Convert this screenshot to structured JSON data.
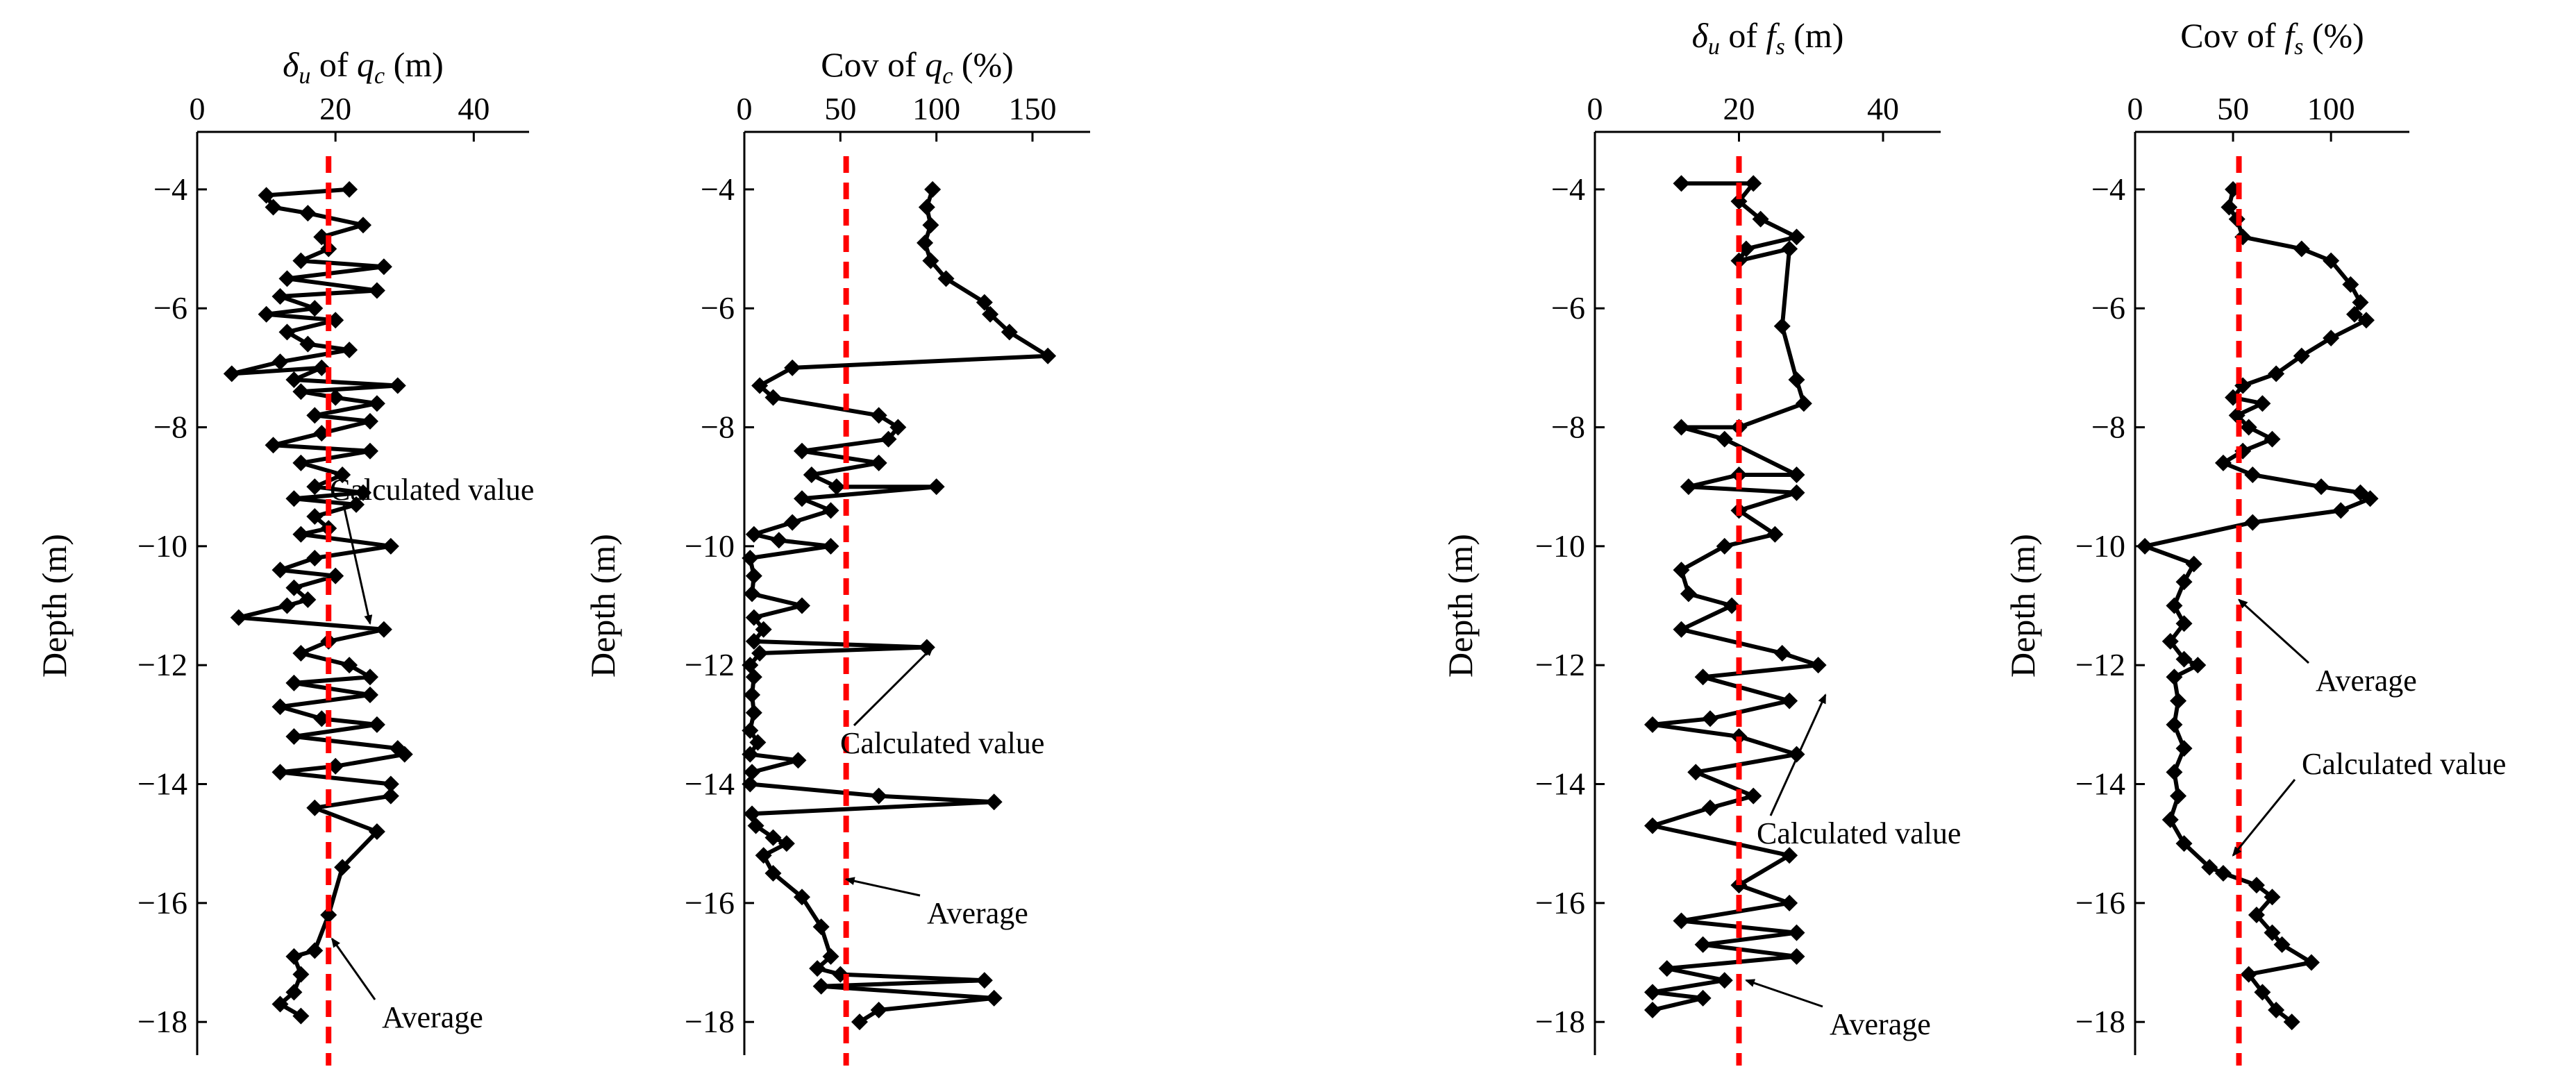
{
  "colors": {
    "data_line": "#000000",
    "average_line": "#ff0000"
  },
  "shared": {
    "ylabel": "Depth (m)",
    "yticks": [
      -4,
      -6,
      -8,
      -10,
      -12,
      -14,
      -16,
      -18
    ],
    "ylim": [
      -18.5,
      -3.5
    ]
  },
  "chart_data": [
    {
      "id": "p1",
      "type": "line",
      "title": "δu of qc (m)",
      "title_parts": [
        "δ",
        "u",
        " of ",
        "q",
        "c",
        " (m)"
      ],
      "xlabel": "δu of qc (m)",
      "ylabel": "Depth (m)",
      "xlim": [
        0,
        48
      ],
      "xticks": [
        0,
        20,
        40
      ],
      "average": 19,
      "series": [
        {
          "name": "Calculated value",
          "marker": "diamond",
          "points": [
            [
              22,
              -4.0
            ],
            [
              10,
              -4.1
            ],
            [
              11,
              -4.3
            ],
            [
              16,
              -4.4
            ],
            [
              24,
              -4.6
            ],
            [
              18,
              -4.8
            ],
            [
              19,
              -5.0
            ],
            [
              15,
              -5.2
            ],
            [
              27,
              -5.3
            ],
            [
              13,
              -5.5
            ],
            [
              26,
              -5.7
            ],
            [
              12,
              -5.8
            ],
            [
              17,
              -6.0
            ],
            [
              10,
              -6.1
            ],
            [
              20,
              -6.2
            ],
            [
              13,
              -6.4
            ],
            [
              16,
              -6.6
            ],
            [
              22,
              -6.7
            ],
            [
              12,
              -6.9
            ],
            [
              5,
              -7.1
            ],
            [
              18,
              -7.0
            ],
            [
              14,
              -7.2
            ],
            [
              29,
              -7.3
            ],
            [
              15,
              -7.4
            ],
            [
              20,
              -7.5
            ],
            [
              26,
              -7.6
            ],
            [
              17,
              -7.8
            ],
            [
              25,
              -7.9
            ],
            [
              18,
              -8.1
            ],
            [
              11,
              -8.3
            ],
            [
              25,
              -8.4
            ],
            [
              15,
              -8.6
            ],
            [
              21,
              -8.8
            ],
            [
              17,
              -9.0
            ],
            [
              24,
              -9.1
            ],
            [
              14,
              -9.2
            ],
            [
              23,
              -9.3
            ],
            [
              17,
              -9.5
            ],
            [
              19,
              -9.7
            ],
            [
              15,
              -9.8
            ],
            [
              28,
              -10.0
            ],
            [
              17,
              -10.2
            ],
            [
              12,
              -10.4
            ],
            [
              20,
              -10.5
            ],
            [
              14,
              -10.7
            ],
            [
              16,
              -10.9
            ],
            [
              13,
              -11.0
            ],
            [
              6,
              -11.2
            ],
            [
              27,
              -11.4
            ],
            [
              19,
              -11.6
            ],
            [
              15,
              -11.8
            ],
            [
              22,
              -12.0
            ],
            [
              25,
              -12.2
            ],
            [
              14,
              -12.3
            ],
            [
              25,
              -12.5
            ],
            [
              12,
              -12.7
            ],
            [
              18,
              -12.9
            ],
            [
              26,
              -13.0
            ],
            [
              14,
              -13.2
            ],
            [
              29,
              -13.4
            ],
            [
              30,
              -13.5
            ],
            [
              20,
              -13.7
            ],
            [
              12,
              -13.8
            ],
            [
              28,
              -14.0
            ],
            [
              28,
              -14.2
            ],
            [
              17,
              -14.4
            ],
            [
              26,
              -14.8
            ],
            [
              21,
              -15.4
            ],
            [
              19,
              -16.2
            ],
            [
              17,
              -16.8
            ],
            [
              14,
              -16.9
            ],
            [
              15,
              -17.2
            ],
            [
              14,
              -17.5
            ],
            [
              12,
              -17.7
            ],
            [
              15,
              -17.9
            ]
          ]
        }
      ],
      "annotations": [
        {
          "text": "Calculated value",
          "target": [
            25,
            -11.3
          ]
        },
        {
          "text": "Average",
          "target": [
            19.5,
            -16.6
          ]
        }
      ]
    },
    {
      "id": "p2",
      "type": "line",
      "title": "Cov of qc (%)",
      "title_parts": [
        "Cov of ",
        "q",
        "c",
        " (%)"
      ],
      "xlabel": "Cov of qc (%)",
      "ylabel": "Depth (m)",
      "xlim": [
        0,
        180
      ],
      "xticks": [
        0,
        50,
        100,
        150
      ],
      "average": 53,
      "series": [
        {
          "name": "Calculated value",
          "marker": "diamond",
          "points": [
            [
              98,
              -4.0
            ],
            [
              95,
              -4.3
            ],
            [
              97,
              -4.6
            ],
            [
              94,
              -4.9
            ],
            [
              97,
              -5.2
            ],
            [
              105,
              -5.5
            ],
            [
              125,
              -5.9
            ],
            [
              128,
              -6.1
            ],
            [
              138,
              -6.4
            ],
            [
              158,
              -6.8
            ],
            [
              25,
              -7.0
            ],
            [
              8,
              -7.3
            ],
            [
              15,
              -7.5
            ],
            [
              70,
              -7.8
            ],
            [
              80,
              -8.0
            ],
            [
              75,
              -8.2
            ],
            [
              30,
              -8.4
            ],
            [
              70,
              -8.6
            ],
            [
              35,
              -8.8
            ],
            [
              48,
              -9.0
            ],
            [
              100,
              -9.0
            ],
            [
              30,
              -9.2
            ],
            [
              45,
              -9.4
            ],
            [
              25,
              -9.6
            ],
            [
              5,
              -9.8
            ],
            [
              18,
              -9.9
            ],
            [
              45,
              -10.0
            ],
            [
              3,
              -10.2
            ],
            [
              5,
              -10.5
            ],
            [
              4,
              -10.8
            ],
            [
              30,
              -11.0
            ],
            [
              5,
              -11.2
            ],
            [
              10,
              -11.4
            ],
            [
              5,
              -11.6
            ],
            [
              95,
              -11.7
            ],
            [
              8,
              -11.8
            ],
            [
              3,
              -12.0
            ],
            [
              5,
              -12.2
            ],
            [
              4,
              -12.5
            ],
            [
              5,
              -12.8
            ],
            [
              3,
              -13.1
            ],
            [
              7,
              -13.3
            ],
            [
              3,
              -13.5
            ],
            [
              28,
              -13.6
            ],
            [
              4,
              -13.8
            ],
            [
              3,
              -14.0
            ],
            [
              70,
              -14.2
            ],
            [
              130,
              -14.3
            ],
            [
              4,
              -14.5
            ],
            [
              6,
              -14.7
            ],
            [
              15,
              -14.9
            ],
            [
              22,
              -15.0
            ],
            [
              10,
              -15.2
            ],
            [
              15,
              -15.5
            ],
            [
              30,
              -15.9
            ],
            [
              40,
              -16.4
            ],
            [
              45,
              -16.9
            ],
            [
              38,
              -17.1
            ],
            [
              50,
              -17.2
            ],
            [
              125,
              -17.3
            ],
            [
              40,
              -17.4
            ],
            [
              130,
              -17.6
            ],
            [
              70,
              -17.8
            ],
            [
              60,
              -18.0
            ]
          ]
        }
      ],
      "annotations": [
        {
          "text": "Calculated value",
          "target": [
            98,
            -11.7
          ]
        },
        {
          "text": "Average",
          "target": [
            53,
            -15.6
          ]
        }
      ]
    },
    {
      "id": "p3",
      "type": "line",
      "title": "δu of fs (m)",
      "title_parts": [
        "δ",
        "u",
        " of ",
        "f",
        "s",
        " (m)"
      ],
      "xlabel": "δu of fs (m)",
      "ylabel": "Depth (m)",
      "xlim": [
        0,
        48
      ],
      "xticks": [
        0,
        20,
        40
      ],
      "average": 20,
      "series": [
        {
          "name": "Calculated value",
          "marker": "diamond",
          "points": [
            [
              12,
              -3.9
            ],
            [
              22,
              -3.9
            ],
            [
              20,
              -4.2
            ],
            [
              23,
              -4.5
            ],
            [
              28,
              -4.8
            ],
            [
              21,
              -5.0
            ],
            [
              20,
              -5.2
            ],
            [
              27,
              -5.0
            ],
            [
              26,
              -6.3
            ],
            [
              28,
              -7.2
            ],
            [
              29,
              -7.6
            ],
            [
              20,
              -8.0
            ],
            [
              12,
              -8.0
            ],
            [
              18,
              -8.2
            ],
            [
              28,
              -8.8
            ],
            [
              20,
              -8.8
            ],
            [
              13,
              -9.0
            ],
            [
              28,
              -9.1
            ],
            [
              20,
              -9.4
            ],
            [
              25,
              -9.8
            ],
            [
              18,
              -10.0
            ],
            [
              12,
              -10.4
            ],
            [
              13,
              -10.8
            ],
            [
              19,
              -11.0
            ],
            [
              12,
              -11.4
            ],
            [
              26,
              -11.8
            ],
            [
              31,
              -12.0
            ],
            [
              15,
              -12.2
            ],
            [
              27,
              -12.6
            ],
            [
              16,
              -12.9
            ],
            [
              8,
              -13.0
            ],
            [
              20,
              -13.2
            ],
            [
              28,
              -13.5
            ],
            [
              14,
              -13.8
            ],
            [
              22,
              -14.2
            ],
            [
              16,
              -14.4
            ],
            [
              8,
              -14.7
            ],
            [
              27,
              -15.2
            ],
            [
              20,
              -15.7
            ],
            [
              27,
              -16.0
            ],
            [
              12,
              -16.3
            ],
            [
              28,
              -16.5
            ],
            [
              15,
              -16.7
            ],
            [
              28,
              -16.9
            ],
            [
              10,
              -17.1
            ],
            [
              18,
              -17.3
            ],
            [
              8,
              -17.5
            ],
            [
              15,
              -17.6
            ],
            [
              8,
              -17.8
            ]
          ]
        }
      ],
      "annotations": [
        {
          "text": "Calculated value",
          "target": [
            32,
            -12.5
          ]
        },
        {
          "text": "Average",
          "target": [
            21,
            -17.3
          ]
        }
      ]
    },
    {
      "id": "p4",
      "type": "line",
      "title": "Cov of fs (%)",
      "title_parts": [
        "Cov of ",
        "f",
        "s",
        " (%)"
      ],
      "xlabel": "Cov of fs (%)",
      "ylabel": "Depth (m)",
      "xlim": [
        0,
        140
      ],
      "xticks": [
        0,
        50,
        100
      ],
      "average": 53,
      "series": [
        {
          "name": "Calculated value",
          "marker": "diamond",
          "points": [
            [
              50,
              -4.0
            ],
            [
              48,
              -4.3
            ],
            [
              52,
              -4.5
            ],
            [
              55,
              -4.8
            ],
            [
              85,
              -5.0
            ],
            [
              100,
              -5.2
            ],
            [
              110,
              -5.6
            ],
            [
              115,
              -5.9
            ],
            [
              112,
              -6.1
            ],
            [
              118,
              -6.2
            ],
            [
              100,
              -6.5
            ],
            [
              85,
              -6.8
            ],
            [
              72,
              -7.1
            ],
            [
              55,
              -7.3
            ],
            [
              50,
              -7.5
            ],
            [
              65,
              -7.6
            ],
            [
              52,
              -7.8
            ],
            [
              58,
              -8.0
            ],
            [
              70,
              -8.2
            ],
            [
              55,
              -8.4
            ],
            [
              45,
              -8.6
            ],
            [
              60,
              -8.8
            ],
            [
              95,
              -9.0
            ],
            [
              115,
              -9.1
            ],
            [
              120,
              -9.2
            ],
            [
              105,
              -9.4
            ],
            [
              60,
              -9.6
            ],
            [
              5,
              -10.0
            ],
            [
              30,
              -10.3
            ],
            [
              25,
              -10.6
            ],
            [
              20,
              -11.0
            ],
            [
              25,
              -11.3
            ],
            [
              18,
              -11.6
            ],
            [
              25,
              -11.9
            ],
            [
              32,
              -12.0
            ],
            [
              20,
              -12.2
            ],
            [
              22,
              -12.6
            ],
            [
              20,
              -13.0
            ],
            [
              25,
              -13.4
            ],
            [
              20,
              -13.8
            ],
            [
              22,
              -14.2
            ],
            [
              18,
              -14.6
            ],
            [
              25,
              -15.0
            ],
            [
              38,
              -15.4
            ],
            [
              45,
              -15.5
            ],
            [
              62,
              -15.7
            ],
            [
              70,
              -15.9
            ],
            [
              62,
              -16.2
            ],
            [
              70,
              -16.5
            ],
            [
              75,
              -16.7
            ],
            [
              90,
              -17.0
            ],
            [
              58,
              -17.2
            ],
            [
              65,
              -17.5
            ],
            [
              72,
              -17.8
            ],
            [
              80,
              -18.0
            ]
          ]
        }
      ],
      "annotations": [
        {
          "text": "Average",
          "target": [
            53,
            -10.9
          ]
        },
        {
          "text": "Calculated value",
          "target": [
            50,
            -15.2
          ]
        }
      ]
    }
  ]
}
